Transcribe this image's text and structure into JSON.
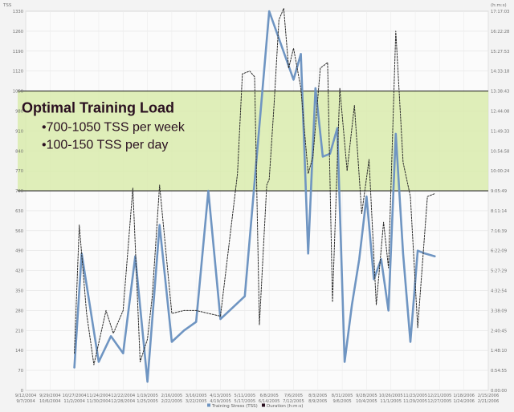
{
  "chart_data": {
    "type": "line",
    "title": "",
    "y_left_unit": "TSS",
    "y_right_unit": "(h:m:s)",
    "ylim": [
      0,
      1330
    ],
    "y_ticks_left": [
      "0",
      "70",
      "140",
      "210",
      "280",
      "350",
      "420",
      "490",
      "560",
      "630",
      "700",
      "770",
      "840",
      "910",
      "980",
      "1050",
      "1120",
      "1190",
      "1260",
      "1330"
    ],
    "y_ticks_right": [
      "0:00:00",
      "0:54:55",
      "1:48:10",
      "2:40:45",
      "3:38:09",
      "4:32:54",
      "5:27:29",
      "6:22:09",
      "7:16:39",
      "8:11:14",
      "9:05:49",
      "10:00:24",
      "10:54:58",
      "11:49:33",
      "12:44:08",
      "13:38:43",
      "14:33:18",
      "15:27:53",
      "16:22:28",
      "17:17:03"
    ],
    "x_ticks": [
      [
        "9/12/2004",
        "9/7/2004"
      ],
      [
        "9/29/2004",
        "10/6/2004"
      ],
      [
        "10/27/2004",
        "11/2/2004"
      ],
      [
        "11/24/2004",
        "11/30/2004"
      ],
      [
        "12/22/2004",
        "12/28/2004"
      ],
      [
        "1/19/2005",
        "1/25/2005"
      ],
      [
        "2/16/2005",
        "2/22/2005"
      ],
      [
        "3/16/2005",
        "3/22/2005"
      ],
      [
        "4/13/2005",
        "4/19/2005"
      ],
      [
        "5/11/2005",
        "5/17/2005"
      ],
      [
        "6/8/2005",
        "6/14/2005"
      ],
      [
        "7/6/2005",
        "7/12/2005"
      ],
      [
        "8/3/2005",
        "8/9/2005"
      ],
      [
        "8/31/2005",
        "9/6/2005"
      ],
      [
        "9/28/2005",
        "10/4/2005"
      ],
      [
        "10/26/2005",
        "11/1/2005"
      ],
      [
        "11/23/2005",
        "11/29/2005"
      ],
      [
        "12/21/2005",
        "12/27/2005"
      ],
      [
        "1/18/2006",
        "1/24/2006"
      ],
      [
        "2/15/2006",
        "2/21/2006"
      ]
    ],
    "band": {
      "y_from": 700,
      "y_to": 1050,
      "color": "#d7eaa6",
      "title": "Optimal Training Load",
      "lines": [
        "•700-1050 TSS per week",
        "•100-150 TSS per day"
      ]
    },
    "series": [
      {
        "name": "Training Stress (TSS)",
        "color": "#6f95c2",
        "style": "solid",
        "x": [
          2.0,
          2.3,
          3.0,
          3.5,
          4.0,
          4.5,
          5.0,
          5.5,
          6.0,
          6.5,
          7.0,
          7.5,
          8.0,
          9.0,
          10.0,
          11.0,
          11.3,
          11.6,
          11.9,
          12.2,
          12.5,
          12.8,
          13.1,
          13.4,
          13.7,
          14.0,
          14.3,
          14.6,
          14.9,
          15.2,
          15.5,
          15.8,
          16.1,
          16.4,
          16.8
        ],
        "values": [
          80,
          480,
          100,
          190,
          130,
          470,
          30,
          580,
          170,
          210,
          240,
          700,
          250,
          330,
          1330,
          1090,
          1180,
          480,
          1060,
          820,
          830,
          920,
          100,
          300,
          460,
          680,
          390,
          460,
          280,
          900,
          480,
          170,
          490,
          480,
          470
        ]
      },
      {
        "name": "Duration (h:m:s)",
        "color": "#2a2a2a",
        "style": "dotted",
        "x": [
          2.0,
          2.2,
          2.5,
          2.8,
          3.3,
          3.6,
          4.0,
          4.4,
          4.7,
          5.0,
          5.2,
          5.5,
          6.0,
          6.5,
          7.0,
          8.0,
          8.7,
          8.9,
          9.2,
          9.4,
          9.6,
          9.9,
          10.0,
          10.2,
          10.4,
          10.6,
          10.8,
          11.0,
          11.3,
          11.6,
          11.8,
          12.1,
          12.4,
          12.6,
          12.9,
          13.2,
          13.5,
          13.8,
          14.1,
          14.4,
          14.7,
          14.9,
          15.2,
          15.5,
          15.8,
          16.1,
          16.5,
          16.8
        ],
        "values": [
          130,
          580,
          270,
          90,
          280,
          200,
          280,
          710,
          100,
          180,
          330,
          720,
          270,
          280,
          280,
          260,
          760,
          1110,
          1120,
          1100,
          230,
          720,
          740,
          1000,
          1300,
          1340,
          1130,
          1200,
          1060,
          760,
          820,
          1130,
          1150,
          310,
          1060,
          770,
          1000,
          620,
          810,
          300,
          590,
          430,
          1260,
          800,
          680,
          220,
          680,
          690
        ]
      }
    ],
    "legend": [
      {
        "label": "Training Stress (TSS)",
        "color": "#6f95c2"
      },
      {
        "label": "Duration (h:m:s)",
        "color": "#2a1020"
      }
    ],
    "legend_position": "bottom-center",
    "grid": true
  }
}
